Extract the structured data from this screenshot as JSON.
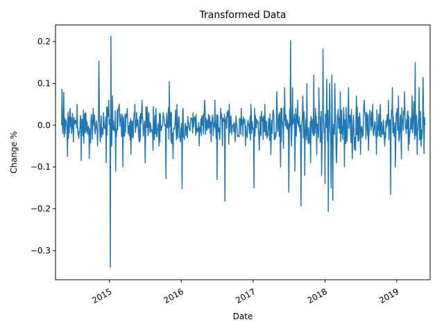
{
  "chart_data": {
    "type": "line",
    "title": "Transformed Data",
    "xlabel": "Date",
    "ylabel": "Change %",
    "x_range": [
      "2014-04-01",
      "2019-06-20"
    ],
    "ylim": [
      -0.37,
      0.24
    ],
    "y_ticks": [
      {
        "value": 0.2,
        "label": "0.2"
      },
      {
        "value": 0.1,
        "label": "0.1"
      },
      {
        "value": 0.0,
        "label": "0.0"
      },
      {
        "value": -0.1,
        "label": "−0.1"
      },
      {
        "value": -0.2,
        "label": "−0.2"
      },
      {
        "value": -0.3,
        "label": "−0.3"
      }
    ],
    "x_ticks": [
      {
        "value": "2015-01-01",
        "label": "2015"
      },
      {
        "value": "2016-01-01",
        "label": "2016"
      },
      {
        "value": "2017-01-01",
        "label": "2017"
      },
      {
        "value": "2018-01-01",
        "label": "2018"
      },
      {
        "value": "2019-01-01",
        "label": "2019"
      }
    ],
    "grid": false,
    "legend": "none",
    "series": [
      {
        "color": "#1f77b4",
        "x": [
          "2014-05-01",
          "2014-05-04",
          "2014-05-08",
          "2014-05-13",
          "2014-05-20",
          "2014-06-01",
          "2014-06-15",
          "2014-07-01",
          "2014-07-20",
          "2014-08-10",
          "2014-09-01",
          "2014-09-20",
          "2014-10-10",
          "2014-11-01",
          "2014-11-08",
          "2014-11-15",
          "2014-12-01",
          "2014-12-15",
          "2014-12-28",
          "2015-01-05",
          "2015-01-08",
          "2015-01-12",
          "2015-01-16",
          "2015-02-01",
          "2015-02-20",
          "2015-03-10",
          "2015-04-01",
          "2015-04-20",
          "2015-05-10",
          "2015-06-01",
          "2015-06-15",
          "2015-07-01",
          "2015-07-20",
          "2015-08-10",
          "2015-08-25",
          "2015-09-10",
          "2015-10-01",
          "2015-10-15",
          "2015-11-01",
          "2015-11-20",
          "2015-12-10",
          "2015-12-28",
          "2016-01-05",
          "2016-01-10",
          "2016-02-01",
          "2016-03-01",
          "2016-04-01",
          "2016-05-01",
          "2016-06-01",
          "2016-06-20",
          "2016-07-01",
          "2016-07-20",
          "2016-08-10",
          "2016-09-01",
          "2016-10-01",
          "2016-11-01",
          "2016-12-01",
          "2016-12-20",
          "2017-01-05",
          "2017-01-08",
          "2017-02-01",
          "2017-03-01",
          "2017-04-01",
          "2017-05-01",
          "2017-05-20",
          "2017-06-10",
          "2017-07-01",
          "2017-07-10",
          "2017-07-15",
          "2017-07-20",
          "2017-08-01",
          "2017-08-15",
          "2017-09-01",
          "2017-09-10",
          "2017-09-20",
          "2017-10-01",
          "2017-10-20",
          "2017-11-05",
          "2017-11-20",
          "2017-12-01",
          "2017-12-15",
          "2017-12-22",
          "2018-01-01",
          "2018-01-10",
          "2018-01-18",
          "2018-01-25",
          "2018-02-01",
          "2018-02-05",
          "2018-02-10",
          "2018-02-20",
          "2018-03-01",
          "2018-03-20",
          "2018-04-10",
          "2018-05-01",
          "2018-05-20",
          "2018-06-10",
          "2018-07-01",
          "2018-07-20",
          "2018-08-10",
          "2018-09-01",
          "2018-09-20",
          "2018-10-10",
          "2018-11-01",
          "2018-11-20",
          "2018-12-01",
          "2018-12-10",
          "2018-12-25",
          "2019-01-10",
          "2019-01-25",
          "2019-02-10",
          "2019-03-01",
          "2019-03-20",
          "2019-04-05",
          "2019-04-15",
          "2019-04-25",
          "2019-05-05",
          "2019-05-15",
          "2019-05-20",
          "2019-05-25"
        ],
        "y": [
          0.0,
          0.086,
          -0.02,
          0.079,
          -0.02,
          -0.075,
          0.04,
          -0.04,
          0.05,
          -0.085,
          0.03,
          -0.08,
          0.04,
          -0.05,
          0.154,
          -0.04,
          0.03,
          -0.09,
          0.06,
          -0.34,
          0.213,
          -0.05,
          0.07,
          -0.11,
          0.05,
          -0.1,
          0.04,
          -0.07,
          0.05,
          -0.04,
          0.06,
          -0.09,
          0.03,
          -0.06,
          0.04,
          -0.05,
          0.03,
          -0.128,
          0.104,
          -0.08,
          0.05,
          -0.04,
          -0.152,
          0.04,
          -0.03,
          0.03,
          -0.05,
          0.04,
          -0.04,
          0.06,
          -0.13,
          0.04,
          -0.182,
          0.05,
          -0.04,
          0.04,
          -0.03,
          0.05,
          -0.15,
          0.04,
          -0.06,
          0.05,
          -0.07,
          0.08,
          -0.1,
          0.09,
          -0.16,
          0.203,
          -0.05,
          0.09,
          -0.11,
          0.06,
          -0.193,
          0.07,
          -0.12,
          0.1,
          -0.09,
          0.12,
          -0.07,
          0.09,
          -0.12,
          0.183,
          -0.14,
          0.11,
          -0.207,
          0.1,
          -0.15,
          0.12,
          -0.18,
          0.1,
          -0.09,
          0.08,
          -0.1,
          0.09,
          -0.08,
          0.07,
          -0.07,
          0.06,
          -0.06,
          0.05,
          -0.07,
          0.05,
          -0.05,
          0.06,
          -0.166,
          0.09,
          -0.1,
          0.07,
          -0.08,
          0.08,
          -0.06,
          0.07,
          0.15,
          -0.07,
          0.09,
          -0.05,
          0.114,
          -0.068,
          0.0
        ]
      }
    ]
  }
}
